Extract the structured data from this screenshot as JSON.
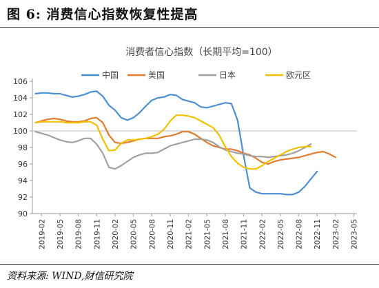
{
  "figure": {
    "title": "图 6:  消费信心指数恢复性提高",
    "source": "资料来源: WIND,财信研究院"
  },
  "chart_data": {
    "type": "line",
    "title": "消费者信心指数（长期平均=100）",
    "xlabel": "",
    "ylabel": "",
    "ylim": [
      90,
      106
    ],
    "yticks": [
      90,
      92,
      94,
      96,
      98,
      100,
      102,
      104,
      106
    ],
    "x": [
      "2019-01",
      "2019-02",
      "2019-03",
      "2019-04",
      "2019-05",
      "2019-06",
      "2019-07",
      "2019-08",
      "2019-09",
      "2019-10",
      "2019-11",
      "2019-12",
      "2020-01",
      "2020-02",
      "2020-03",
      "2020-04",
      "2020-05",
      "2020-06",
      "2020-07",
      "2020-08",
      "2020-09",
      "2020-10",
      "2020-11",
      "2020-12",
      "2021-01",
      "2021-02",
      "2021-03",
      "2021-04",
      "2021-05",
      "2021-06",
      "2021-07",
      "2021-08",
      "2021-09",
      "2021-10",
      "2021-11",
      "2021-12",
      "2022-01",
      "2022-02",
      "2022-03",
      "2022-04",
      "2022-05",
      "2022-06",
      "2022-07",
      "2022-08",
      "2022-09",
      "2022-10",
      "2022-11",
      "2022-12",
      "2023-01",
      "2023-02",
      "2023-03",
      "2023-04",
      "2023-05"
    ],
    "xtick_labels": [
      "2019-02",
      "2019-05",
      "2019-08",
      "2019-11",
      "2020-02",
      "2020-05",
      "2020-08",
      "2020-11",
      "2021-02",
      "2021-05",
      "2021-08",
      "2021-11",
      "2022-02",
      "2022-05",
      "2022-08",
      "2022-11",
      "2023-02",
      "2023-05"
    ],
    "reference_line": 100,
    "legend_position": "top",
    "series": [
      {
        "name": "中国",
        "color": "#4a8fd1",
        "values": [
          104.5,
          104.6,
          104.6,
          104.5,
          104.5,
          104.3,
          104.1,
          104.2,
          104.4,
          104.7,
          104.8,
          104.2,
          103.1,
          102.5,
          101.6,
          101.3,
          101.6,
          102.2,
          103.0,
          103.7,
          104.0,
          104.1,
          104.4,
          104.3,
          103.8,
          103.6,
          103.4,
          102.9,
          102.8,
          103.0,
          103.2,
          103.4,
          103.3,
          101.3,
          97.0,
          93.1,
          92.6,
          92.4,
          92.4,
          92.4,
          92.4,
          92.3,
          92.3,
          92.6,
          93.3,
          94.2,
          95.1,
          null,
          null,
          null,
          null,
          null,
          null
        ]
      },
      {
        "name": "美国",
        "color": "#e07a2e",
        "values": [
          101.0,
          101.2,
          101.4,
          101.5,
          101.4,
          101.2,
          101.1,
          101.1,
          101.2,
          101.5,
          101.6,
          101.0,
          99.5,
          98.6,
          98.5,
          98.6,
          98.8,
          99.0,
          99.1,
          99.1,
          99.1,
          99.3,
          99.4,
          99.6,
          99.9,
          99.9,
          99.6,
          99.1,
          98.6,
          98.2,
          98.0,
          97.8,
          97.8,
          97.6,
          97.3,
          97.1,
          96.7,
          96.2,
          96.0,
          96.3,
          96.5,
          96.6,
          96.7,
          96.8,
          97.0,
          97.2,
          97.4,
          97.5,
          97.2,
          96.8,
          null,
          null,
          null
        ]
      },
      {
        "name": "日本",
        "color": "#a0a0a0",
        "values": [
          99.9,
          99.7,
          99.5,
          99.2,
          98.9,
          98.7,
          98.6,
          98.8,
          99.1,
          99.1,
          98.4,
          97.3,
          95.6,
          95.4,
          95.8,
          96.3,
          96.8,
          97.1,
          97.3,
          97.3,
          97.4,
          97.8,
          98.2,
          98.4,
          98.6,
          98.8,
          99.0,
          99.0,
          98.9,
          98.6,
          98.1,
          97.7,
          97.5,
          97.3,
          97.2,
          97.0,
          96.9,
          96.9,
          96.8,
          96.9,
          97.0,
          97.1,
          97.3,
          97.6,
          98.0,
          98.4,
          null,
          null,
          null,
          null,
          null,
          null,
          null
        ]
      },
      {
        "name": "欧元区",
        "color": "#f2c000",
        "values": [
          101.0,
          101.1,
          101.1,
          101.1,
          101.1,
          101.0,
          101.0,
          101.0,
          101.1,
          101.1,
          100.7,
          99.0,
          97.6,
          97.7,
          98.5,
          98.9,
          98.9,
          99.0,
          99.1,
          99.3,
          99.6,
          100.2,
          101.2,
          101.9,
          101.9,
          101.8,
          101.6,
          101.2,
          100.8,
          100.4,
          99.5,
          98.1,
          96.9,
          96.1,
          95.6,
          95.4,
          95.4,
          95.8,
          96.3,
          96.7,
          97.1,
          97.5,
          97.8,
          98.0,
          98.1,
          98.1,
          null,
          null,
          null,
          null,
          null,
          null,
          null
        ]
      }
    ]
  }
}
